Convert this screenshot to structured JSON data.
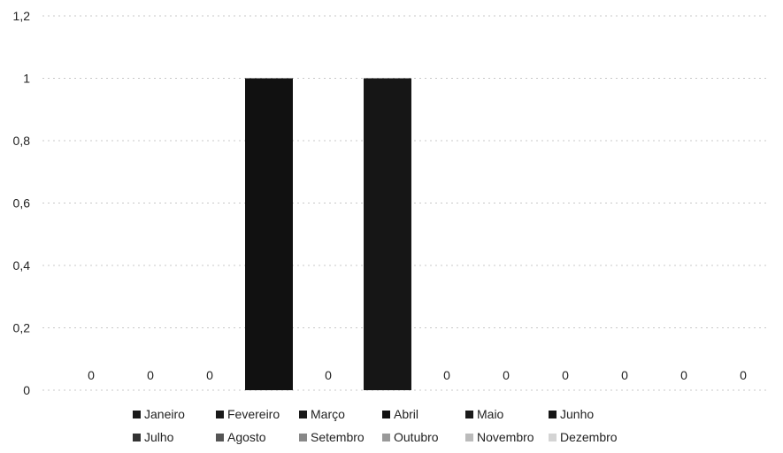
{
  "chart_data": {
    "type": "bar",
    "categories": [
      "Janeiro",
      "Fevereiro",
      "Março",
      "Abril",
      "Maio",
      "Junho",
      "Julho",
      "Agosto",
      "Setembro",
      "Outubro",
      "Novembro",
      "Dezembro"
    ],
    "series": [
      {
        "name": "Janeiro",
        "value": 0,
        "color": "#1a1a1a"
      },
      {
        "name": "Fevereiro",
        "value": 0,
        "color": "#1a1a1a"
      },
      {
        "name": "Março",
        "value": 0,
        "color": "#1a1a1a"
      },
      {
        "name": "Abril",
        "value": 1,
        "color": "#111111"
      },
      {
        "name": "Maio",
        "value": 0,
        "color": "#1a1a1a"
      },
      {
        "name": "Junho",
        "value": 1,
        "color": "#161616"
      },
      {
        "name": "Julho",
        "value": 0,
        "color": "#333333"
      },
      {
        "name": "Agosto",
        "value": 0,
        "color": "#555555"
      },
      {
        "name": "Setembro",
        "value": 0,
        "color": "#888888"
      },
      {
        "name": "Outubro",
        "value": 0,
        "color": "#999999"
      },
      {
        "name": "Novembro",
        "value": 0,
        "color": "#bbbbbb"
      },
      {
        "name": "Dezembro",
        "value": 0,
        "color": "#d4d4d4"
      }
    ],
    "data_labels": [
      "0",
      "0",
      "0",
      "",
      "0",
      "",
      "0",
      "0",
      "0",
      "0",
      "0",
      "0"
    ],
    "yticks": [
      "0",
      "0,2",
      "0,4",
      "0,6",
      "0,8",
      "1",
      "1,2"
    ],
    "ylim": [
      0,
      1.2
    ],
    "grid": true,
    "legend_position": "bottom"
  }
}
